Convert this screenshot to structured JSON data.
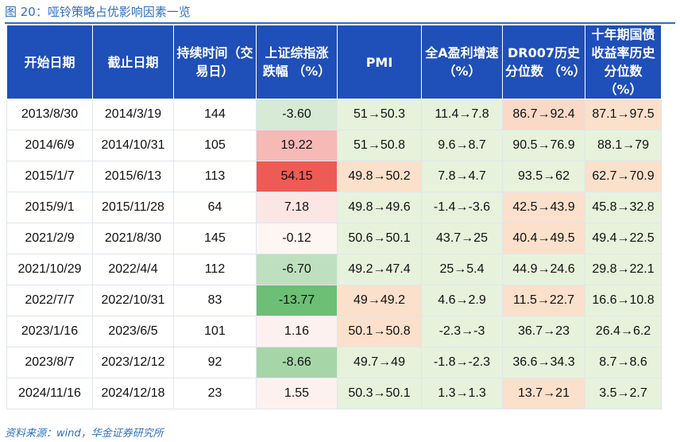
{
  "title": "图 20：哑铃策略占优影响因素一览",
  "source": "资料来源：wind，华金证券研究所",
  "headers": [
    "开始日期",
    "截止日期",
    "持续时间（交易日）",
    "上证综指涨跌幅 （%）",
    "PMI",
    "全A盈利增速 （%）",
    "DR007历史分位数 （%）",
    "十年期国债收益率历史分位数 （%）"
  ],
  "rows": [
    [
      "2013/8/30",
      "2014/3/19",
      "144",
      "-3.60",
      "51→50.3",
      "11.4→7.8",
      "86.7→92.4",
      "87.1→97.5"
    ],
    [
      "2014/6/9",
      "2014/10/31",
      "105",
      "19.22",
      "51→50.8",
      "9.6→8.7",
      "90.5→76.9",
      "88.1→79"
    ],
    [
      "2015/1/7",
      "2015/6/13",
      "113",
      "54.15",
      "49.8→50.2",
      "7.8→4.7",
      "93.5→62",
      "62.7→70.9"
    ],
    [
      "2015/9/1",
      "2015/11/28",
      "64",
      "7.18",
      "49.8→49.6",
      "-1.4→-3.6",
      "42.5→43.9",
      "45.8→32.8"
    ],
    [
      "2021/2/9",
      "2021/8/30",
      "145",
      "-0.12",
      "50.6→50.1",
      "43.7→25",
      "40.4→49.5",
      "49.4→22.5"
    ],
    [
      "2021/10/29",
      "2022/4/4",
      "112",
      "-6.70",
      "49.2→47.4",
      "25→5.4",
      "44.9→24.6",
      "29.8→22.1"
    ],
    [
      "2022/7/7",
      "2022/10/31",
      "83",
      "-13.77",
      "49→49.2",
      "4.6→2.9",
      "11.5→22.7",
      "16.6→10.8"
    ],
    [
      "2023/1/16",
      "2023/6/5",
      "101",
      "1.16",
      "50.1→50.8",
      "-2.3→-3",
      "36.7→23",
      "26.4→6.2"
    ],
    [
      "2023/8/7",
      "2023/12/12",
      "92",
      "-8.66",
      "49.7→49",
      "-1.8→-2.3",
      "36.6→34.3",
      "8.7→8.6"
    ],
    [
      "2024/11/16",
      "2024/12/18",
      "23",
      "1.55",
      "50.3→50.1",
      "1.3→1.3",
      "13.7→21",
      "3.5→2.7"
    ]
  ],
  "cell_colors": [
    [
      "#ffffff",
      "#ffffff",
      "#ffffff",
      "#d6ead6",
      "#e6f2dc",
      "#e6f2dc",
      "#fbd9c7",
      "#fbe0cc"
    ],
    [
      "#ffffff",
      "#ffffff",
      "#ffffff",
      "#f6b9b6",
      "#e6f2dc",
      "#e6f2dc",
      "#e6f2dc",
      "#e6f2dc"
    ],
    [
      "#ffffff",
      "#ffffff",
      "#ffffff",
      "#ee5a54",
      "#fbe0cc",
      "#e6f2dc",
      "#e6f2dc",
      "#fbe0cc"
    ],
    [
      "#ffffff",
      "#ffffff",
      "#ffffff",
      "#fce6e4",
      "#e6f2dc",
      "#e6f2dc",
      "#fbe0cc",
      "#e6f2dc"
    ],
    [
      "#ffffff",
      "#ffffff",
      "#ffffff",
      "#fdf6f3",
      "#e6f2dc",
      "#e6f2dc",
      "#fbe0cc",
      "#e6f2dc"
    ],
    [
      "#ffffff",
      "#ffffff",
      "#ffffff",
      "#bfe0bf",
      "#e6f2dc",
      "#e6f2dc",
      "#e6f2dc",
      "#e6f2dc"
    ],
    [
      "#ffffff",
      "#ffffff",
      "#ffffff",
      "#6cbf74",
      "#fbe0cc",
      "#e6f2dc",
      "#fbe0cc",
      "#e6f2dc"
    ],
    [
      "#ffffff",
      "#ffffff",
      "#ffffff",
      "#fdf1ef",
      "#fbe0cc",
      "#e6f2dc",
      "#e6f2dc",
      "#e6f2dc"
    ],
    [
      "#ffffff",
      "#ffffff",
      "#ffffff",
      "#a6d6a8",
      "#e6f2dc",
      "#e6f2dc",
      "#e6f2dc",
      "#e6f2dc"
    ],
    [
      "#ffffff",
      "#ffffff",
      "#ffffff",
      "#fdf1ef",
      "#e6f2dc",
      "#e6f2dc",
      "#fbe0cc",
      "#e6f2dc"
    ]
  ]
}
